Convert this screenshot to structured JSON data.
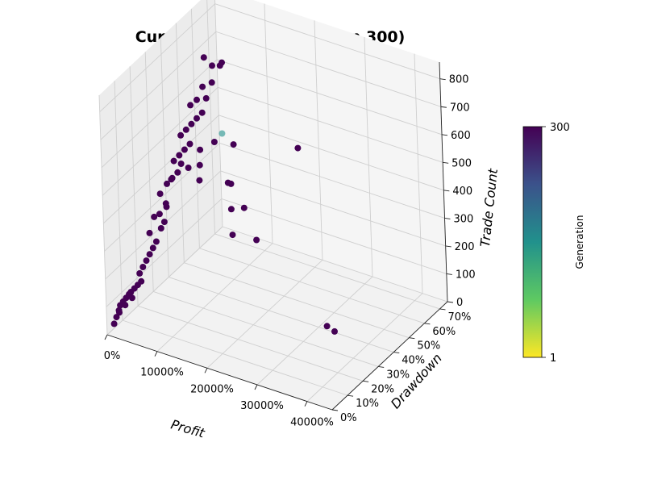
{
  "chart_data": {
    "type": "scatter",
    "projection": "3d",
    "title": "Current Pareto Front (Gen 300)",
    "xlabel": "Profit",
    "ylabel": "Drawdown",
    "zlabel": "Trade Count",
    "xlim": [
      0,
      45000
    ],
    "ylim": [
      0,
      75
    ],
    "zlim": [
      0,
      860
    ],
    "x_ticks": [
      0,
      10000,
      20000,
      30000,
      40000
    ],
    "x_tick_labels": [
      "0%",
      "10000%",
      "20000%",
      "30000%",
      "40000%"
    ],
    "y_ticks": [
      0,
      10,
      20,
      30,
      40,
      50,
      60,
      70
    ],
    "y_tick_labels": [
      "0%",
      "10%",
      "20%",
      "30%",
      "40%",
      "50%",
      "60%",
      "70%"
    ],
    "z_ticks": [
      0,
      100,
      200,
      300,
      400,
      500,
      600,
      700,
      800
    ],
    "z_tick_labels": [
      "0",
      "100",
      "200",
      "300",
      "400",
      "500",
      "600",
      "700",
      "800"
    ],
    "grid": true,
    "colorbar": {
      "label": "Generation",
      "min": 1,
      "max": 300,
      "min_label": "1",
      "max_label": "300",
      "colormap": "viridis-reversed",
      "colors": [
        "#fde725",
        "#5ec962",
        "#21918c",
        "#3b528b",
        "#440154"
      ]
    },
    "points": [
      {
        "x": 200,
        "y": 4,
        "z": 20,
        "gen": 300
      },
      {
        "x": 400,
        "y": 5,
        "z": 40,
        "gen": 300
      },
      {
        "x": 600,
        "y": 6,
        "z": 60,
        "gen": 300
      },
      {
        "x": 900,
        "y": 6,
        "z": 80,
        "gen": 300
      },
      {
        "x": 1200,
        "y": 7,
        "z": 90,
        "gen": 300
      },
      {
        "x": 1500,
        "y": 8,
        "z": 100,
        "gen": 300
      },
      {
        "x": 1800,
        "y": 9,
        "z": 110,
        "gen": 300
      },
      {
        "x": 2200,
        "y": 9,
        "z": 120,
        "gen": 300
      },
      {
        "x": 2600,
        "y": 10,
        "z": 130,
        "gen": 300
      },
      {
        "x": 3000,
        "y": 11,
        "z": 140,
        "gen": 300
      },
      {
        "x": 3400,
        "y": 12,
        "z": 150,
        "gen": 300
      },
      {
        "x": 1000,
        "y": 5,
        "z": 60,
        "gen": 300
      },
      {
        "x": 1600,
        "y": 7,
        "z": 80,
        "gen": 300
      },
      {
        "x": 2400,
        "y": 9,
        "z": 100,
        "gen": 300
      },
      {
        "x": 2800,
        "y": 13,
        "z": 170,
        "gen": 300
      },
      {
        "x": 3200,
        "y": 14,
        "z": 190,
        "gen": 300
      },
      {
        "x": 3600,
        "y": 15,
        "z": 210,
        "gen": 300
      },
      {
        "x": 4000,
        "y": 16,
        "z": 230,
        "gen": 300
      },
      {
        "x": 4400,
        "y": 17,
        "z": 250,
        "gen": 300
      },
      {
        "x": 4800,
        "y": 18,
        "z": 270,
        "gen": 300
      },
      {
        "x": 5200,
        "y": 20,
        "z": 310,
        "gen": 300
      },
      {
        "x": 5600,
        "y": 21,
        "z": 330,
        "gen": 300
      },
      {
        "x": 3800,
        "y": 17,
        "z": 300,
        "gen": 300
      },
      {
        "x": 4200,
        "y": 19,
        "z": 350,
        "gen": 300
      },
      {
        "x": 5000,
        "y": 20,
        "z": 360,
        "gen": 300
      },
      {
        "x": 5800,
        "y": 22,
        "z": 380,
        "gen": 300
      },
      {
        "x": 4600,
        "y": 22,
        "z": 420,
        "gen": 300
      },
      {
        "x": 5400,
        "y": 24,
        "z": 450,
        "gen": 300
      },
      {
        "x": 6200,
        "y": 25,
        "z": 470,
        "gen": 300
      },
      {
        "x": 7000,
        "y": 26,
        "z": 490,
        "gen": 300
      },
      {
        "x": 6000,
        "y": 27,
        "z": 520,
        "gen": 300
      },
      {
        "x": 6800,
        "y": 28,
        "z": 540,
        "gen": 300
      },
      {
        "x": 7600,
        "y": 29,
        "z": 560,
        "gen": 300
      },
      {
        "x": 8400,
        "y": 30,
        "z": 580,
        "gen": 300
      },
      {
        "x": 6600,
        "y": 30,
        "z": 600,
        "gen": 300
      },
      {
        "x": 7400,
        "y": 31,
        "z": 620,
        "gen": 300
      },
      {
        "x": 8200,
        "y": 32,
        "z": 640,
        "gen": 300
      },
      {
        "x": 9000,
        "y": 33,
        "z": 660,
        "gen": 300
      },
      {
        "x": 9800,
        "y": 34,
        "z": 680,
        "gen": 300
      },
      {
        "x": 7800,
        "y": 33,
        "z": 700,
        "gen": 300
      },
      {
        "x": 8800,
        "y": 34,
        "z": 720,
        "gen": 300
      },
      {
        "x": 10400,
        "y": 35,
        "z": 730,
        "gen": 300
      },
      {
        "x": 9400,
        "y": 36,
        "z": 760,
        "gen": 300
      },
      {
        "x": 11000,
        "y": 37,
        "z": 780,
        "gen": 300
      },
      {
        "x": 8600,
        "y": 40,
        "z": 840,
        "gen": 300
      },
      {
        "x": 10200,
        "y": 40,
        "z": 820,
        "gen": 300
      },
      {
        "x": 11800,
        "y": 40,
        "z": 830,
        "gen": 300
      },
      {
        "x": 12500,
        "y": 39,
        "z": 850,
        "gen": 300
      },
      {
        "x": 7200,
        "y": 40,
        "z": 500,
        "gen": 300
      },
      {
        "x": 6400,
        "y": 42,
        "z": 430,
        "gen": 300
      },
      {
        "x": 5600,
        "y": 44,
        "z": 360,
        "gen": 300
      },
      {
        "x": 10800,
        "y": 38,
        "z": 560,
        "gen": 300
      },
      {
        "x": 12400,
        "y": 38,
        "z": 600,
        "gen": 150
      },
      {
        "x": 14000,
        "y": 40,
        "z": 560,
        "gen": 300
      },
      {
        "x": 12000,
        "y": 42,
        "z": 400,
        "gen": 300
      },
      {
        "x": 12600,
        "y": 42,
        "z": 400,
        "gen": 300
      },
      {
        "x": 11200,
        "y": 46,
        "z": 280,
        "gen": 300
      },
      {
        "x": 13800,
        "y": 46,
        "z": 300,
        "gen": 300
      },
      {
        "x": 10000,
        "y": 50,
        "z": 160,
        "gen": 300
      },
      {
        "x": 14800,
        "y": 50,
        "z": 170,
        "gen": 300
      },
      {
        "x": 28600,
        "y": 35,
        "z": 660,
        "gen": 300
      },
      {
        "x": 36500,
        "y": 25,
        "z": 120,
        "gen": 300
      },
      {
        "x": 38000,
        "y": 25,
        "z": 110,
        "gen": 300
      },
      {
        "x": 7000,
        "y": 18,
        "z": 420,
        "gen": 300
      },
      {
        "x": 7600,
        "y": 20,
        "z": 500,
        "gen": 300
      },
      {
        "x": 8400,
        "y": 24,
        "z": 540,
        "gen": 300
      },
      {
        "x": 9200,
        "y": 26,
        "z": 520,
        "gen": 300
      }
    ]
  }
}
